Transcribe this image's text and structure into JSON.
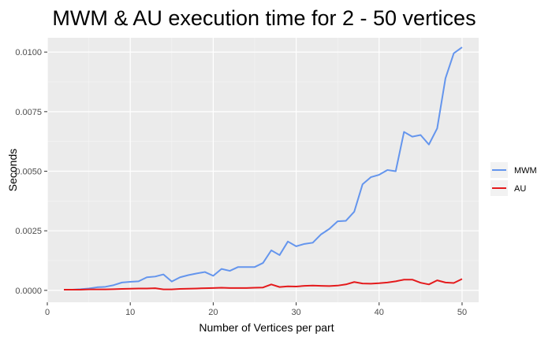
{
  "chart_data": {
    "type": "line",
    "title": "MWM & AU execution time  for 2 - 50 vertices",
    "xlabel": "Number of Vertices per part",
    "ylabel": "Seconds",
    "xlim": [
      0,
      52
    ],
    "ylim": [
      -0.0005,
      0.0106
    ],
    "xticks": [
      0,
      10,
      20,
      30,
      40,
      50
    ],
    "xtick_labels": [
      "0",
      "10",
      "20",
      "30",
      "40",
      "50"
    ],
    "yticks": [
      0,
      0.0025,
      0.005,
      0.0075,
      0.01
    ],
    "ytick_labels": [
      "0.0000",
      "0.0025",
      "0.0050",
      "0.0075",
      "0.0100"
    ],
    "grid": true,
    "legend_position": "right",
    "x": [
      2,
      3,
      4,
      5,
      6,
      7,
      8,
      9,
      10,
      11,
      12,
      13,
      14,
      15,
      16,
      17,
      18,
      19,
      20,
      21,
      22,
      23,
      24,
      25,
      26,
      27,
      28,
      29,
      30,
      31,
      32,
      33,
      34,
      35,
      36,
      37,
      38,
      39,
      40,
      41,
      42,
      43,
      44,
      45,
      46,
      47,
      48,
      49,
      50
    ],
    "series": [
      {
        "name": "MWM",
        "color": "#6495ED",
        "values": [
          3e-05,
          3e-05,
          5e-05,
          8e-05,
          0.00013,
          0.00015,
          0.00022,
          0.00033,
          0.00036,
          0.00038,
          0.00055,
          0.00058,
          0.00067,
          0.00037,
          0.00055,
          0.00064,
          0.00071,
          0.00077,
          0.00061,
          0.0009,
          0.00082,
          0.00098,
          0.00098,
          0.00098,
          0.00115,
          0.00168,
          0.00148,
          0.00205,
          0.00185,
          0.00195,
          0.002,
          0.00235,
          0.00258,
          0.0029,
          0.00292,
          0.0033,
          0.00445,
          0.00475,
          0.00485,
          0.00505,
          0.005,
          0.00665,
          0.00645,
          0.00652,
          0.00612,
          0.0068,
          0.0089,
          0.00995,
          0.0102
        ]
      },
      {
        "name": "AU",
        "color": "#E41A1C",
        "values": [
          3e-05,
          3e-05,
          3e-05,
          4e-05,
          4e-05,
          4e-05,
          5e-05,
          6e-05,
          7e-05,
          8e-05,
          8e-05,
          9e-05,
          4e-05,
          4e-05,
          6e-05,
          7e-05,
          8e-05,
          9e-05,
          0.0001,
          0.00011,
          0.0001,
          0.0001,
          0.0001,
          0.00011,
          0.00012,
          0.00025,
          0.00014,
          0.00017,
          0.00016,
          0.00019,
          0.0002,
          0.00019,
          0.00018,
          0.0002,
          0.00025,
          0.00035,
          0.00029,
          0.00028,
          0.0003,
          0.00033,
          0.00038,
          0.00045,
          0.00045,
          0.00032,
          0.00025,
          0.00042,
          0.00033,
          0.00031,
          0.00048
        ]
      }
    ]
  }
}
